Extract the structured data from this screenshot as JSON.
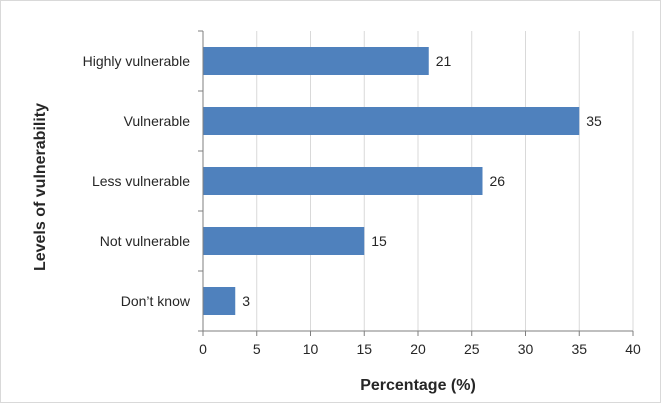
{
  "chart_data": {
    "type": "bar",
    "orientation": "horizontal",
    "categories": [
      "Highly vulnerable",
      "Vulnerable",
      "Less vulnerable",
      "Not vulnerable",
      "Don’t know"
    ],
    "values": [
      21,
      35,
      26,
      15,
      3
    ],
    "title": "",
    "xlabel": "Percentage (%)",
    "ylabel": "Levels of vulnerability",
    "xlim": [
      0,
      40
    ],
    "xticks": [
      0,
      5,
      10,
      15,
      20,
      25,
      30,
      35,
      40
    ],
    "grid": "vertical",
    "legend": "none",
    "bar_color": "#4f81bd",
    "data_labels": true
  }
}
